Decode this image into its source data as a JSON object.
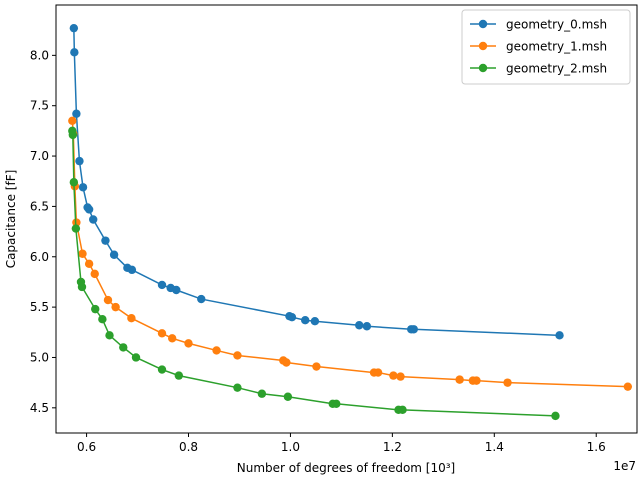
{
  "chart_data": {
    "type": "line",
    "xlabel": "Number of degrees of freedom [10³]",
    "ylabel": "Capacitance [fF]",
    "x_offset_label": "1e7",
    "x_scale": 10000000,
    "xlim": [
      5400000,
      16800000
    ],
    "ylim": [
      4.25,
      8.5
    ],
    "x_ticks": [
      6000000,
      8000000,
      10000000,
      12000000,
      14000000,
      16000000
    ],
    "x_tick_labels": [
      "0.6",
      "0.8",
      "1.0",
      "1.2",
      "1.4",
      "1.6"
    ],
    "y_ticks": [
      4.5,
      5.0,
      5.5,
      6.0,
      6.5,
      7.0,
      7.5,
      8.0
    ],
    "y_tick_labels": [
      "4.5",
      "5.0",
      "5.5",
      "6.0",
      "6.5",
      "7.0",
      "7.5",
      "8.0"
    ],
    "legend_position": "top-right",
    "series": [
      {
        "name": "geometry_0.msh",
        "color": "#1f77b4",
        "points": [
          [
            5750000,
            8.27
          ],
          [
            5760000,
            8.03
          ],
          [
            5800000,
            7.42
          ],
          [
            5860000,
            6.95
          ],
          [
            5930000,
            6.69
          ],
          [
            6020000,
            6.49
          ],
          [
            6050000,
            6.47
          ],
          [
            6130000,
            6.37
          ],
          [
            6370000,
            6.16
          ],
          [
            6540000,
            6.02
          ],
          [
            6800000,
            5.89
          ],
          [
            6890000,
            5.87
          ],
          [
            7480000,
            5.72
          ],
          [
            7650000,
            5.69
          ],
          [
            7760000,
            5.67
          ],
          [
            8250000,
            5.58
          ],
          [
            9980000,
            5.41
          ],
          [
            10030000,
            5.4
          ],
          [
            10290000,
            5.37
          ],
          [
            10480000,
            5.36
          ],
          [
            11350000,
            5.32
          ],
          [
            11500000,
            5.31
          ],
          [
            12370000,
            5.28
          ],
          [
            12420000,
            5.28
          ],
          [
            15280000,
            5.22
          ]
        ]
      },
      {
        "name": "geometry_1.msh",
        "color": "#ff7f0e",
        "points": [
          [
            5720000,
            7.35
          ],
          [
            5740000,
            7.22
          ],
          [
            5770000,
            6.7
          ],
          [
            5800000,
            6.34
          ],
          [
            5920000,
            6.03
          ],
          [
            6050000,
            5.93
          ],
          [
            6160000,
            5.83
          ],
          [
            6420000,
            5.57
          ],
          [
            6570000,
            5.5
          ],
          [
            6880000,
            5.39
          ],
          [
            7480000,
            5.24
          ],
          [
            7680000,
            5.19
          ],
          [
            8000000,
            5.14
          ],
          [
            8550000,
            5.07
          ],
          [
            8960000,
            5.02
          ],
          [
            9860000,
            4.97
          ],
          [
            9920000,
            4.95
          ],
          [
            10510000,
            4.91
          ],
          [
            11640000,
            4.85
          ],
          [
            11720000,
            4.85
          ],
          [
            12020000,
            4.82
          ],
          [
            12160000,
            4.81
          ],
          [
            13320000,
            4.78
          ],
          [
            13580000,
            4.77
          ],
          [
            13650000,
            4.77
          ],
          [
            14260000,
            4.75
          ],
          [
            16620000,
            4.71
          ]
        ]
      },
      {
        "name": "geometry_2.msh",
        "color": "#2ca02c",
        "points": [
          [
            5720000,
            7.25
          ],
          [
            5730000,
            7.21
          ],
          [
            5750000,
            6.74
          ],
          [
            5790000,
            6.28
          ],
          [
            5890000,
            5.75
          ],
          [
            5910000,
            5.7
          ],
          [
            6170000,
            5.48
          ],
          [
            6310000,
            5.38
          ],
          [
            6450000,
            5.22
          ],
          [
            6720000,
            5.1
          ],
          [
            6970000,
            5.0
          ],
          [
            7480000,
            4.88
          ],
          [
            7810000,
            4.82
          ],
          [
            8960000,
            4.7
          ],
          [
            9440000,
            4.64
          ],
          [
            9950000,
            4.61
          ],
          [
            10830000,
            4.54
          ],
          [
            10900000,
            4.54
          ],
          [
            12120000,
            4.48
          ],
          [
            12200000,
            4.48
          ],
          [
            15200000,
            4.42
          ]
        ]
      }
    ]
  }
}
